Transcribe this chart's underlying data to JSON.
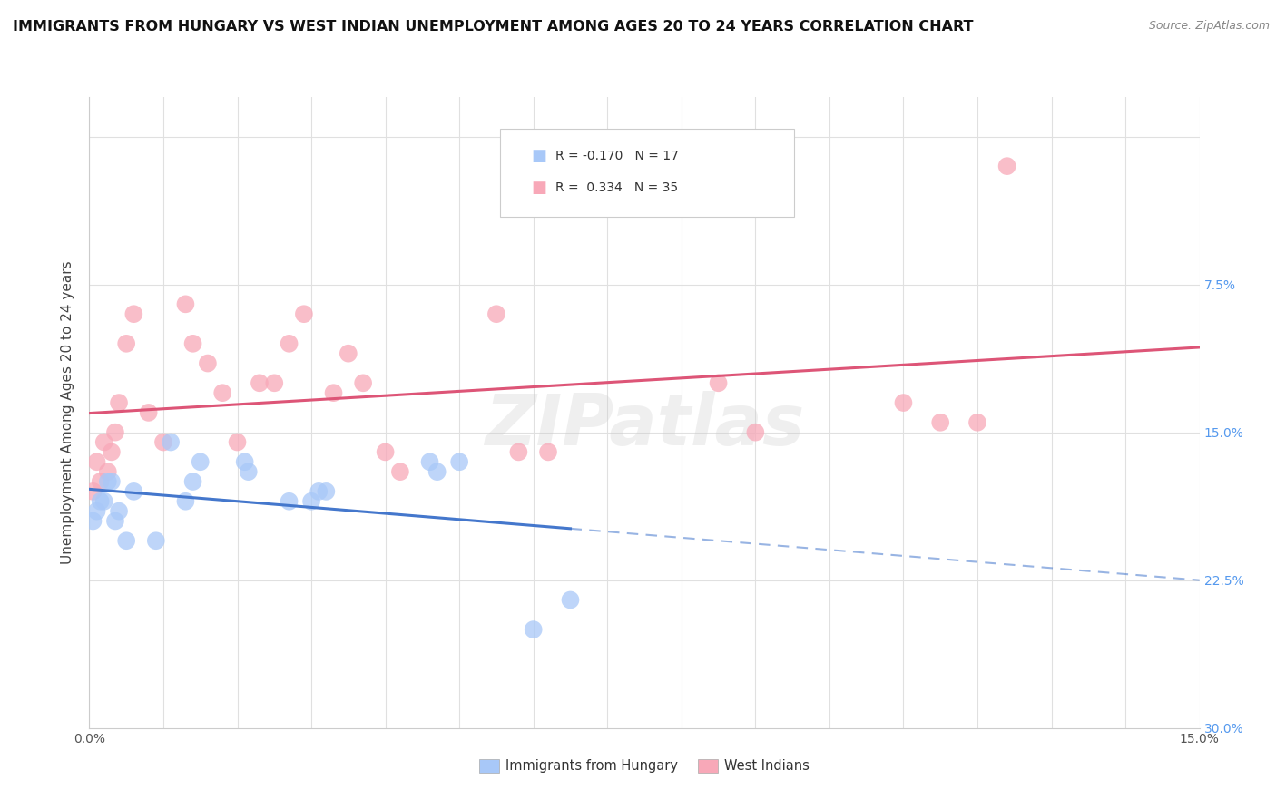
{
  "title": "IMMIGRANTS FROM HUNGARY VS WEST INDIAN UNEMPLOYMENT AMONG AGES 20 TO 24 YEARS CORRELATION CHART",
  "source": "Source: ZipAtlas.com",
  "ylabel": "Unemployment Among Ages 20 to 24 years",
  "xlim": [
    0.0,
    15.0
  ],
  "ylim": [
    0.0,
    32.0
  ],
  "legend_label1": "Immigrants from Hungary",
  "legend_label2": "West Indians",
  "color_hungary": "#a8c8f8",
  "color_westindian": "#f8a8b8",
  "color_line_hungary": "#4477cc",
  "color_line_westindian": "#dd5577",
  "watermark_text": "ZIPatlas",
  "hungary_x": [
    0.05,
    0.1,
    0.15,
    0.2,
    0.25,
    0.3,
    0.35,
    0.4,
    0.5,
    0.6,
    0.9,
    1.1,
    1.3,
    1.4,
    1.5,
    2.1,
    2.15,
    2.7,
    3.0,
    3.1,
    3.2,
    4.6,
    4.7,
    5.0,
    6.0,
    6.5
  ],
  "hungary_y": [
    10.5,
    11.0,
    11.5,
    11.5,
    12.5,
    12.5,
    10.5,
    11.0,
    9.5,
    12.0,
    9.5,
    14.5,
    11.5,
    12.5,
    13.5,
    13.5,
    13.0,
    11.5,
    11.5,
    12.0,
    12.0,
    13.5,
    13.0,
    13.5,
    5.0,
    6.5
  ],
  "westindian_x": [
    0.05,
    0.1,
    0.15,
    0.2,
    0.25,
    0.3,
    0.35,
    0.4,
    0.5,
    0.6,
    0.8,
    1.0,
    1.3,
    1.4,
    1.6,
    1.8,
    2.0,
    2.3,
    2.5,
    2.7,
    2.9,
    3.3,
    3.5,
    3.7,
    4.0,
    4.2,
    5.5,
    5.8,
    6.2,
    8.5,
    9.0,
    11.0,
    11.5,
    12.0,
    12.4
  ],
  "westindian_y": [
    12.0,
    13.5,
    12.5,
    14.5,
    13.0,
    14.0,
    15.0,
    16.5,
    19.5,
    21.0,
    16.0,
    14.5,
    21.5,
    19.5,
    18.5,
    17.0,
    14.5,
    17.5,
    17.5,
    19.5,
    21.0,
    17.0,
    19.0,
    17.5,
    14.0,
    13.0,
    21.0,
    14.0,
    14.0,
    17.5,
    15.0,
    16.5,
    15.5,
    15.5,
    28.5
  ],
  "background_color": "#ffffff",
  "grid_color": "#e0e0e0"
}
